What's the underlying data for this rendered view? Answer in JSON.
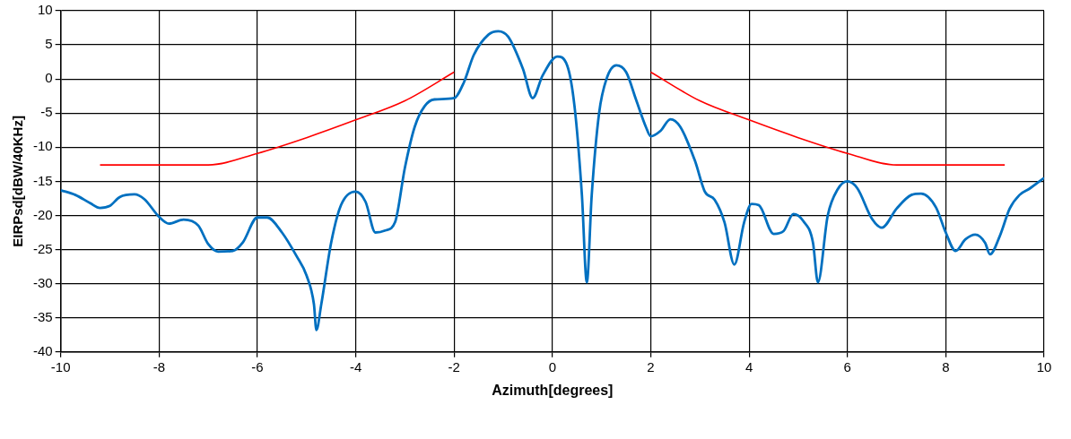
{
  "chart_data": {
    "type": "line",
    "xlabel": "Azimuth[degrees]",
    "ylabel": "EIRPsd[dBW/40KHz]",
    "xlim": [
      -10,
      10
    ],
    "xticks": [
      -10,
      -8,
      -6,
      -4,
      -2,
      0,
      2,
      4,
      6,
      8,
      10
    ],
    "ylim": [
      -40,
      10
    ],
    "yticks": [
      -40,
      -35,
      -30,
      -25,
      -20,
      -15,
      -10,
      -5,
      0,
      5,
      10
    ],
    "grid": true,
    "legend": false,
    "marker": "none",
    "line_style": "solid",
    "series": [
      {
        "color": "#0070c0",
        "x": [
          -10,
          -9.7,
          -9.4,
          -9.2,
          -9.0,
          -8.8,
          -8.5,
          -8.3,
          -8.0,
          -7.8,
          -7.5,
          -7.2,
          -7.0,
          -6.8,
          -6.5,
          -6.3,
          -6.0,
          -5.8,
          -5.5,
          -5.2,
          -5.0,
          -4.85,
          -4.8,
          -4.7,
          -4.5,
          -4.3,
          -4.0,
          -3.8,
          -3.6,
          -3.4,
          -3.2,
          -3.0,
          -2.8,
          -2.6,
          -2.4,
          -2.0,
          -1.8,
          -1.6,
          -1.3,
          -1.1,
          -0.9,
          -0.6,
          -0.4,
          -0.2,
          0.1,
          0.3,
          0.45,
          0.6,
          0.7,
          0.8,
          0.95,
          1.1,
          1.3,
          1.5,
          1.7,
          1.9,
          2.0,
          2.2,
          2.4,
          2.6,
          2.9,
          3.1,
          3.3,
          3.5,
          3.7,
          3.9,
          4.05,
          4.2,
          4.5,
          4.7,
          4.9,
          5.1,
          5.3,
          5.4,
          5.6,
          5.8,
          6.0,
          6.2,
          6.5,
          6.7,
          7.0,
          7.3,
          7.5,
          7.8,
          8.0,
          8.2,
          8.4,
          8.6,
          8.8,
          8.9,
          9.1,
          9.3,
          9.5,
          9.7,
          10
        ],
        "values": [
          -16.3,
          -17,
          -18.2,
          -18.9,
          -18.6,
          -17.3,
          -16.9,
          -17.6,
          -20.2,
          -21.2,
          -20.6,
          -21.5,
          -24.2,
          -25.3,
          -25.2,
          -24,
          -20.3,
          -20.3,
          -22.5,
          -26,
          -28.8,
          -33,
          -36.8,
          -33,
          -24,
          -18.5,
          -16.5,
          -18,
          -22.5,
          -22.2,
          -21,
          -13,
          -7,
          -4,
          -3,
          -2.8,
          -0.5,
          3.5,
          6.5,
          7,
          6.2,
          1.5,
          -2.8,
          0.5,
          3.3,
          2,
          -4,
          -17,
          -29.8,
          -17,
          -5,
          0,
          2,
          1,
          -3,
          -7,
          -8.4,
          -7.6,
          -5.9,
          -7,
          -12,
          -16.5,
          -17.7,
          -21,
          -27.2,
          -21,
          -18.3,
          -18.5,
          -22.7,
          -22.3,
          -19.8,
          -20.8,
          -24,
          -29.8,
          -20,
          -16.2,
          -15,
          -16,
          -20.5,
          -21.8,
          -19,
          -17,
          -16.8,
          -18.8,
          -22.5,
          -25.2,
          -23.5,
          -22.8,
          -24,
          -25.7,
          -23,
          -19,
          -17,
          -16.1,
          -14.5
        ]
      },
      {
        "color": "#ff0000",
        "x": [
          -9.2,
          -7,
          -6,
          -5,
          -4,
          -3,
          -2,
          0,
          2,
          3,
          4,
          5,
          6,
          7,
          9.2
        ],
        "values": [
          -12.6,
          -12.6,
          -10.9,
          -8.6,
          -6,
          -3.2,
          1,
          null,
          1,
          -3.2,
          -6,
          -8.6,
          -10.9,
          -12.6,
          -12.6
        ]
      }
    ]
  }
}
